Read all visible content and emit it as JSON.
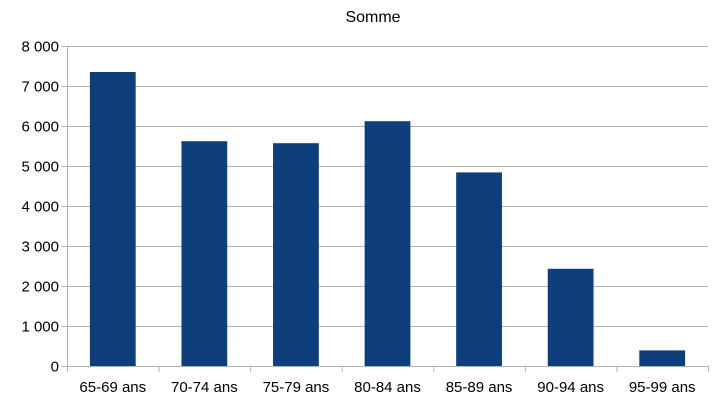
{
  "chart_data": {
    "type": "bar",
    "title": "Somme",
    "categories": [
      "65-69 ans",
      "70-74 ans",
      "75-79 ans",
      "80-84 ans",
      "85-89 ans",
      "90-94 ans",
      "95-99 ans"
    ],
    "values": [
      7350,
      5620,
      5570,
      6120,
      4840,
      2430,
      390
    ],
    "ylim": [
      0,
      8000
    ],
    "yticks": [
      0,
      1000,
      2000,
      3000,
      4000,
      5000,
      6000,
      7000,
      8000
    ],
    "ytick_labels": [
      "0",
      "1 000",
      "2 000",
      "3 000",
      "4 000",
      "5 000",
      "6 000",
      "7 000",
      "8 000"
    ],
    "grid": true,
    "legend": "none",
    "bar_color": "#0f3f7a"
  }
}
